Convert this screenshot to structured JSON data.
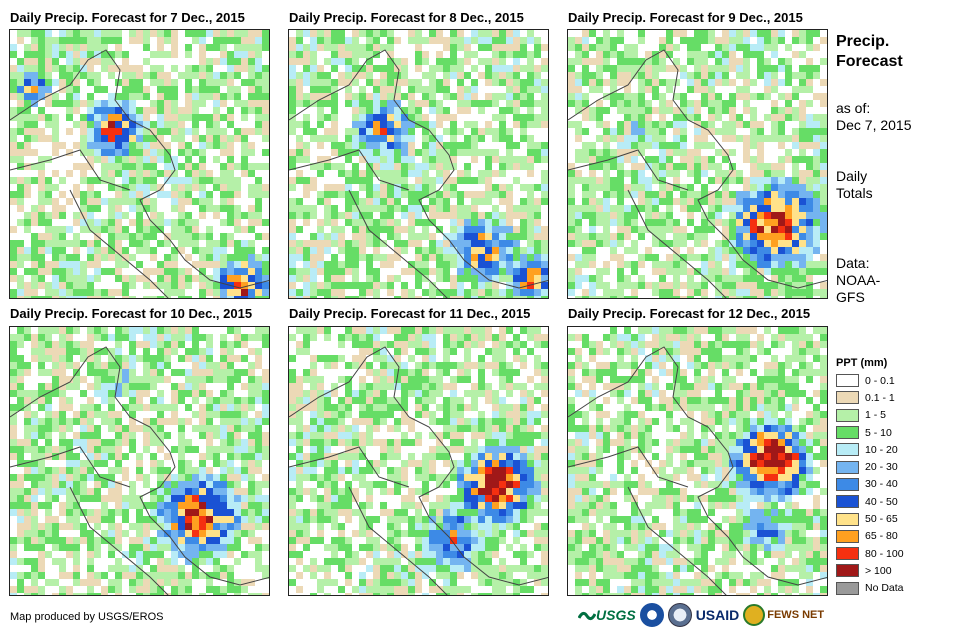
{
  "panels": [
    {
      "title": "Daily Precip. Forecast for 7 Dec., 2015"
    },
    {
      "title": "Daily Precip. Forecast for 8 Dec., 2015"
    },
    {
      "title": "Daily Precip. Forecast for 9 Dec., 2015"
    },
    {
      "title": "Daily Precip. Forecast for 10 Dec., 2015"
    },
    {
      "title": "Daily Precip. Forecast for 11 Dec., 2015"
    },
    {
      "title": "Daily Precip. Forecast for 12 Dec., 2015"
    }
  ],
  "side": {
    "title": "Precip. Forecast",
    "asof_label": "as of:",
    "asof_date": "Dec 7, 2015",
    "daily": "Daily Totals",
    "data_label": "Data:",
    "data_source": "NOAA-GFS"
  },
  "legend": {
    "title": "PPT (mm)",
    "items": [
      {
        "label": "0 - 0.1",
        "color": "#ffffff"
      },
      {
        "label": "0.1 - 1",
        "color": "#ecd9b6"
      },
      {
        "label": "1 - 5",
        "color": "#b5f0a8"
      },
      {
        "label": "5 - 10",
        "color": "#66dd66"
      },
      {
        "label": "10 - 20",
        "color": "#b8ecf6"
      },
      {
        "label": "20 - 30",
        "color": "#74b4f0"
      },
      {
        "label": "30 - 40",
        "color": "#3d8ae6"
      },
      {
        "label": "40 - 50",
        "color": "#1a52d4"
      },
      {
        "label": "50 - 65",
        "color": "#ffe28a"
      },
      {
        "label": "65 - 80",
        "color": "#ffa020"
      },
      {
        "label": "80 - 100",
        "color": "#f53010"
      },
      {
        "label": "> 100",
        "color": "#a01818"
      },
      {
        "label": "No Data",
        "color": "#9a9a9a"
      }
    ]
  },
  "credit": "Map produced by USGS/EROS",
  "logos": {
    "usgs": "USGS",
    "usaid": "USAID",
    "fewsnet": "FEWS NET"
  }
}
